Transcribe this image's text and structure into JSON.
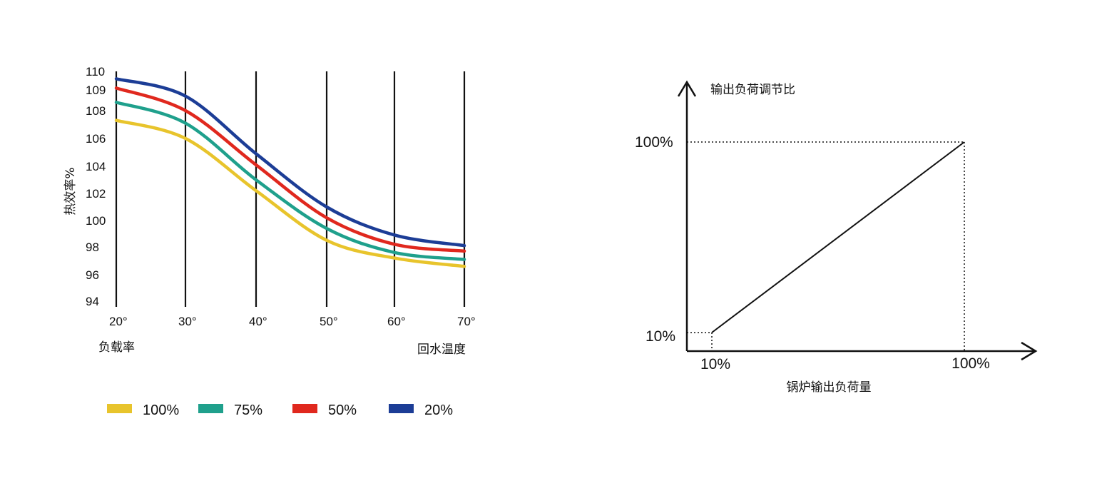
{
  "chart_data": [
    {
      "type": "line",
      "xlabel_left": "负载率",
      "xlabel_right": "回水温度",
      "ylabel": "热效率%",
      "x_ticks": [
        "20°",
        "30°",
        "40°",
        "50°",
        "60°",
        "70°"
      ],
      "y_ticks": [
        "110",
        "109",
        "108",
        "106",
        "104",
        "102",
        "100",
        "98",
        "96",
        "94"
      ],
      "x": [
        20,
        30,
        40,
        50,
        60,
        70
      ],
      "series": [
        {
          "name": "100%",
          "color": "#e8c42c",
          "values": [
            107.3,
            106.0,
            102.2,
            98.5,
            97.2,
            96.6
          ]
        },
        {
          "name": "75%",
          "color": "#1fa08c",
          "values": [
            108.4,
            107.1,
            103.0,
            99.4,
            97.6,
            97.1
          ]
        },
        {
          "name": "50%",
          "color": "#e0281e",
          "values": [
            109.1,
            108.0,
            104.1,
            100.2,
            98.2,
            97.7
          ]
        },
        {
          "name": "20%",
          "color": "#1c3d96",
          "values": [
            109.6,
            108.7,
            104.9,
            101.0,
            98.9,
            98.1
          ]
        }
      ],
      "grid": "vertical lines at each x tick"
    },
    {
      "type": "line",
      "xlabel": "锅炉输出负荷量",
      "ylabel": "输出负荷调节比",
      "x_ticks": [
        "10%",
        "100%"
      ],
      "y_ticks": [
        "10%",
        "100%"
      ],
      "x": [
        10,
        100
      ],
      "values": [
        10,
        100
      ],
      "line_color": "#111111"
    }
  ]
}
